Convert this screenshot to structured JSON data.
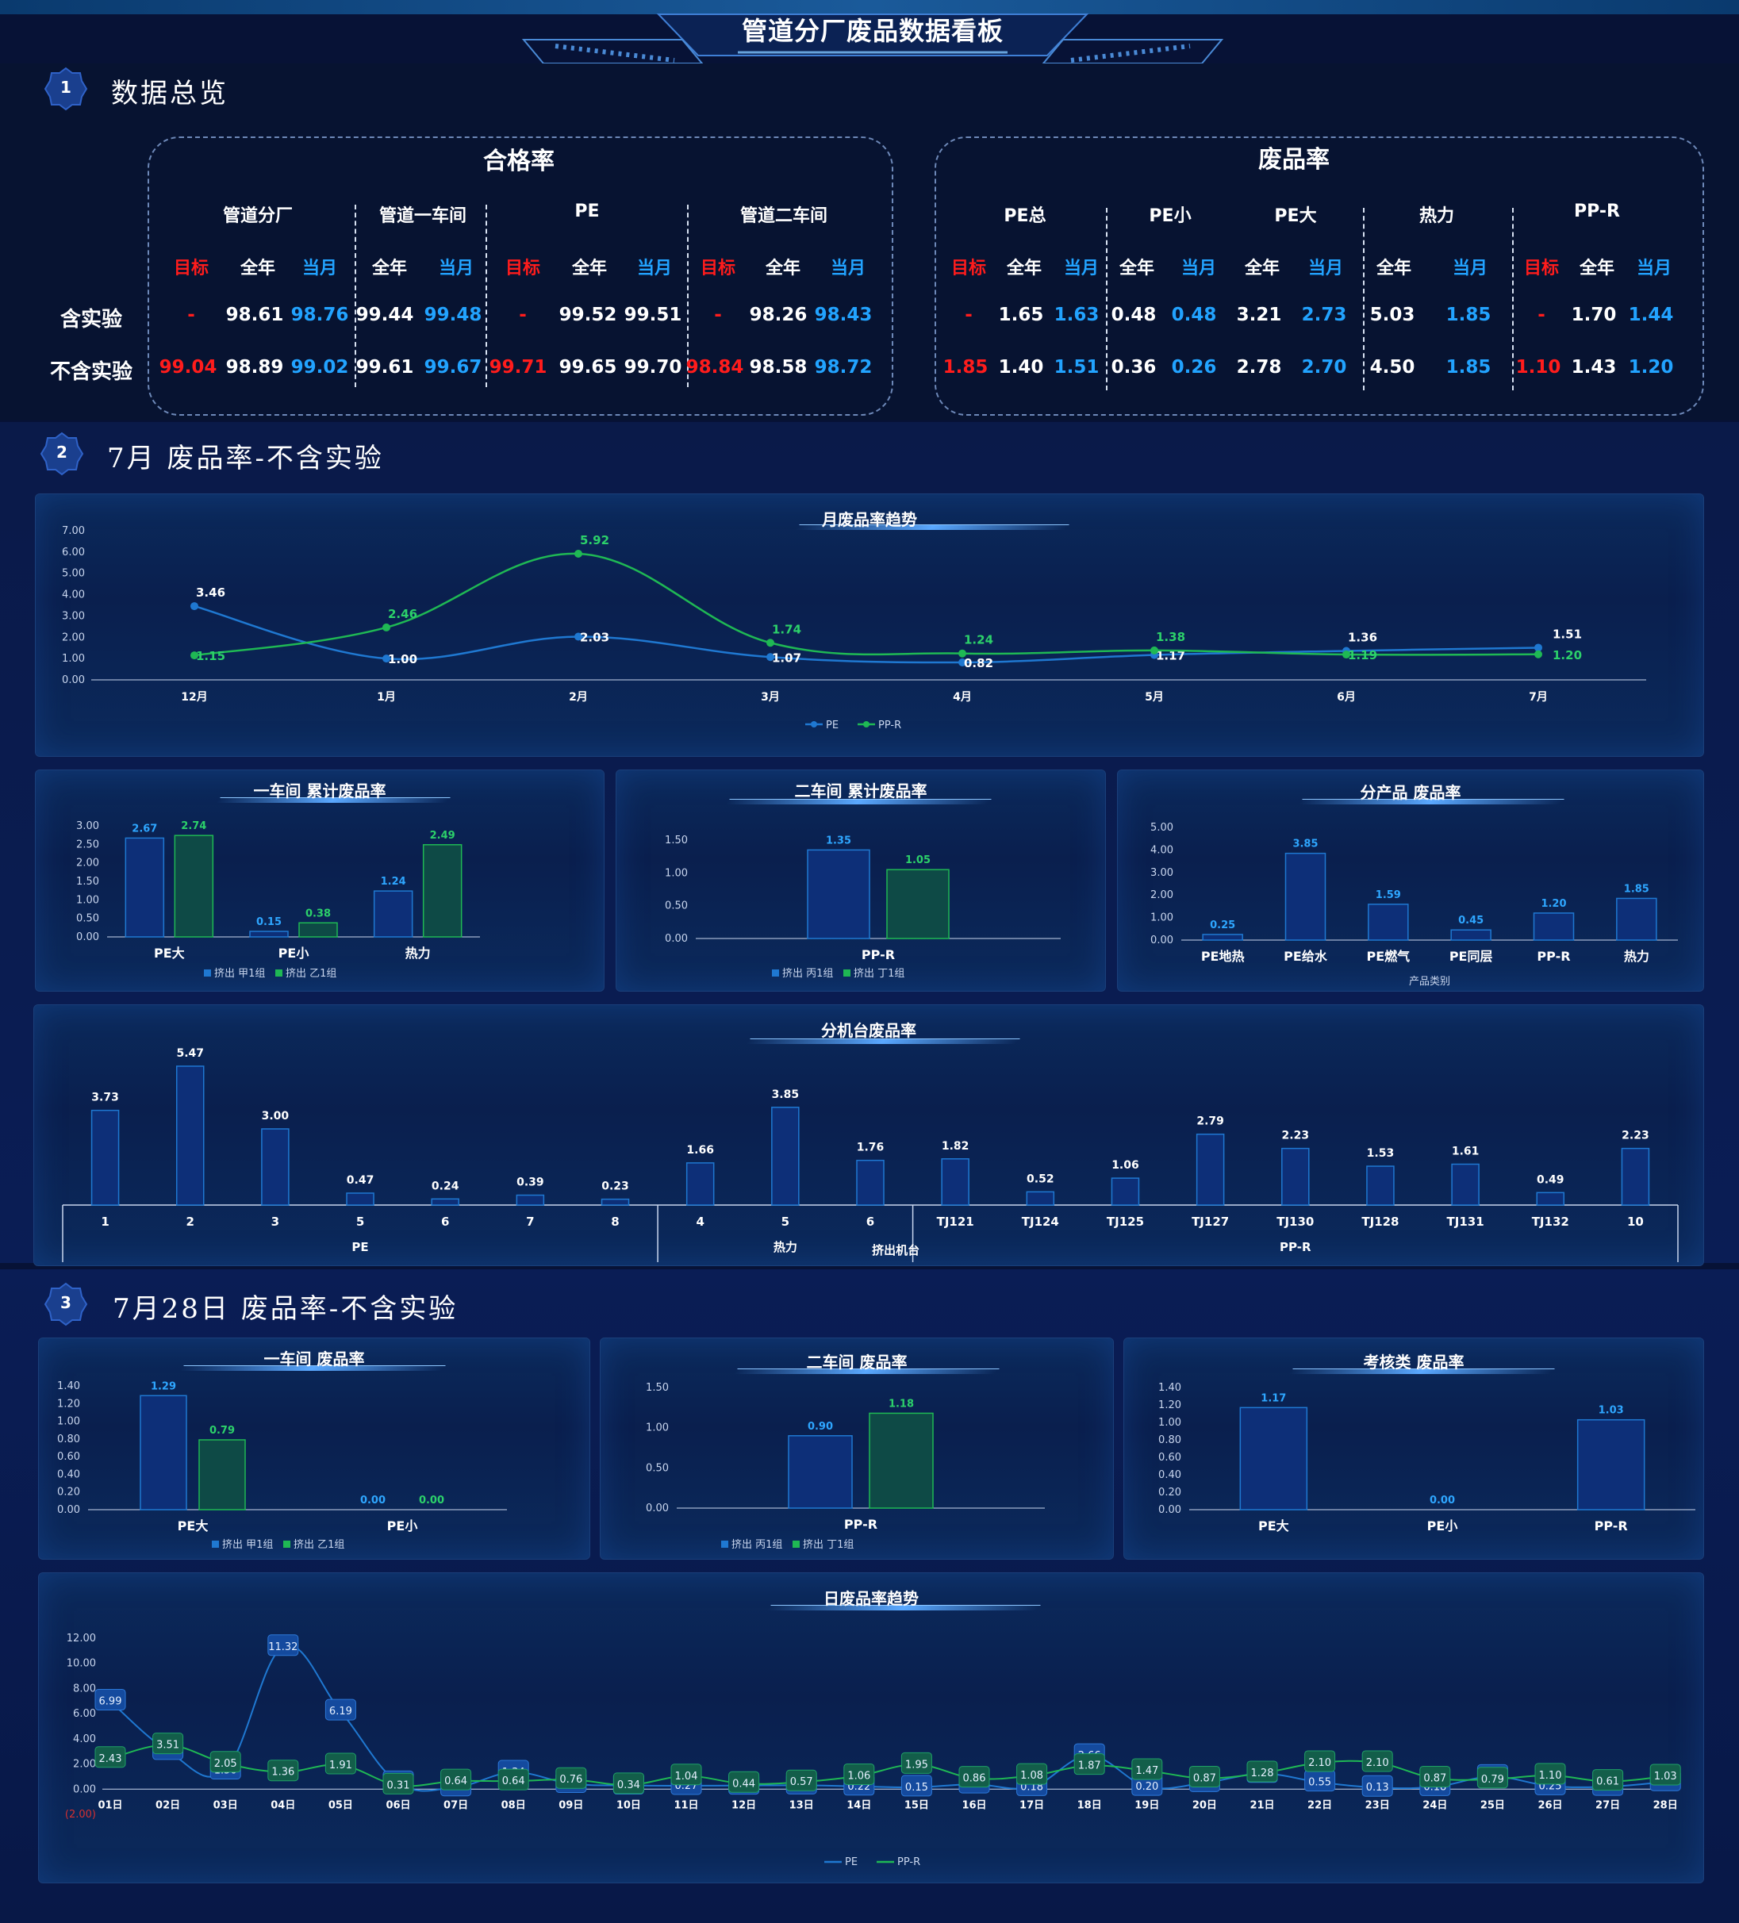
{
  "header": {
    "title": "管道分厂废品数据看板"
  },
  "sections": [
    {
      "num": "1",
      "title": "数据总览"
    },
    {
      "num": "2",
      "title": "7月 废品率-不含实验"
    },
    {
      "num": "3",
      "title": "7月28日 废品率-不含实验"
    }
  ],
  "pass_rate": {
    "title": "合格率",
    "row_labels": [
      "含实验",
      "不含实验"
    ],
    "groups": [
      {
        "name": "管道分厂",
        "cols": [
          "目标",
          "全年",
          "当月"
        ],
        "rows": [
          [
            "-",
            "98.61",
            "98.76"
          ],
          [
            "99.04",
            "98.89",
            "99.02"
          ]
        ]
      },
      {
        "name": "管道一车间",
        "cols": [
          "全年",
          "当月"
        ],
        "rows": [
          [
            "99.44",
            "99.48"
          ],
          [
            "99.61",
            "99.67"
          ]
        ]
      },
      {
        "name": "PE",
        "cols": [
          "目标",
          "全年",
          "当月"
        ],
        "rows": [
          [
            "-",
            "99.52",
            "99.51"
          ],
          [
            "99.71",
            "99.65",
            "99.70"
          ]
        ]
      },
      {
        "name": "管道二车间",
        "cols": [
          "目标",
          "全年",
          "当月"
        ],
        "rows": [
          [
            "-",
            "98.26",
            "98.43"
          ],
          [
            "98.84",
            "98.58",
            "98.72"
          ]
        ]
      }
    ]
  },
  "scrap_rate": {
    "title": "废品率",
    "groups": [
      {
        "name": "PE总",
        "cols": [
          "目标",
          "全年",
          "当月"
        ],
        "rows": [
          [
            "-",
            "1.65",
            "1.63"
          ],
          [
            "1.85",
            "1.40",
            "1.51"
          ]
        ]
      },
      {
        "name": "PE小",
        "cols": [
          "全年",
          "当月"
        ],
        "rows": [
          [
            "0.48",
            "0.48"
          ],
          [
            "0.36",
            "0.26"
          ]
        ]
      },
      {
        "name": "PE大",
        "cols": [
          "全年",
          "当月"
        ],
        "rows": [
          [
            "3.21",
            "2.73"
          ],
          [
            "2.78",
            "2.70"
          ]
        ]
      },
      {
        "name": "热力",
        "cols": [
          "全年",
          "当月"
        ],
        "rows": [
          [
            "5.03",
            "1.85"
          ],
          [
            "4.50",
            "1.85"
          ]
        ]
      },
      {
        "name": "PP-R",
        "cols": [
          "目标",
          "全年",
          "当月"
        ],
        "rows": [
          [
            "-",
            "1.70",
            "1.44"
          ],
          [
            "1.10",
            "1.43",
            "1.20"
          ]
        ]
      }
    ]
  },
  "colors": {
    "pe": "#1f78d1",
    "ppr": "#1fb854",
    "target": "#ff1c1c",
    "current": "#22a3ff"
  },
  "chart_data": [
    {
      "id": "monthly_trend",
      "type": "line",
      "title": "月废品率趋势",
      "categories": [
        "12月",
        "1月",
        "2月",
        "3月",
        "4月",
        "5月",
        "6月",
        "7月"
      ],
      "series": [
        {
          "name": "PE",
          "values": [
            3.46,
            1.0,
            2.03,
            1.07,
            0.82,
            1.17,
            1.36,
            1.51
          ]
        },
        {
          "name": "PP-R",
          "values": [
            1.15,
            2.46,
            5.92,
            1.74,
            1.24,
            1.38,
            1.19,
            1.2
          ]
        }
      ],
      "yticks": [
        "0.00",
        "1.00",
        "2.00",
        "3.00",
        "4.00",
        "5.00",
        "6.00",
        "7.00"
      ],
      "ylim": [
        0,
        7
      ]
    },
    {
      "id": "ws1_cum",
      "type": "bar",
      "title": "一车间 累计废品率",
      "categories": [
        "PE大",
        "PE小",
        "热力"
      ],
      "series": [
        {
          "name": "挤出 甲1组",
          "values": [
            2.67,
            0.15,
            1.24
          ]
        },
        {
          "name": "挤出 乙1组",
          "values": [
            2.74,
            0.38,
            2.49
          ]
        }
      ],
      "yticks": [
        "0.00",
        "0.50",
        "1.00",
        "1.50",
        "2.00",
        "2.50",
        "3.00"
      ],
      "ylim": [
        0,
        3
      ]
    },
    {
      "id": "ws2_cum",
      "type": "bar",
      "title": "二车间 累计废品率",
      "categories": [
        "PP-R"
      ],
      "series": [
        {
          "name": "挤出 丙1组",
          "values": [
            1.35
          ]
        },
        {
          "name": "挤出 丁1组",
          "values": [
            1.05
          ]
        }
      ],
      "yticks": [
        "0.00",
        "0.50",
        "1.00",
        "1.50"
      ],
      "ylim": [
        0,
        1.5
      ]
    },
    {
      "id": "by_product",
      "type": "bar",
      "title": "分产品 废品率",
      "categories": [
        "PE地热",
        "PE给水",
        "PE燃气",
        "PE同层",
        "PP-R",
        "热力"
      ],
      "series": [
        {
          "name": "",
          "values": [
            0.25,
            3.85,
            1.59,
            0.45,
            1.2,
            1.85
          ]
        }
      ],
      "xlabel": "产品类别",
      "yticks": [
        "0.00",
        "1.00",
        "2.00",
        "3.00",
        "4.00",
        "5.00"
      ],
      "ylim": [
        0,
        5
      ]
    },
    {
      "id": "by_machine",
      "type": "bar",
      "title": "分机台废品率",
      "categories": [
        "1",
        "2",
        "3",
        "5",
        "6",
        "7",
        "8",
        "4",
        "5",
        "6",
        "TJ121",
        "TJ124",
        "TJ125",
        "TJ127",
        "TJ130",
        "TJ128",
        "TJ131",
        "TJ132",
        "10"
      ],
      "series": [
        {
          "name": "",
          "values": [
            3.73,
            5.47,
            3.0,
            0.47,
            0.24,
            0.39,
            0.23,
            1.66,
            3.85,
            1.76,
            1.82,
            0.52,
            1.06,
            2.79,
            2.23,
            1.53,
            1.61,
            0.49,
            2.23
          ]
        }
      ],
      "groups": [
        {
          "label": "PE",
          "count": 7
        },
        {
          "label": "热力",
          "count": 3
        },
        {
          "label": "PP-R",
          "count": 9
        }
      ],
      "xlabel": "挤出机台",
      "ylim": [
        0,
        5.5
      ]
    },
    {
      "id": "day_ws1",
      "type": "bar",
      "title": "一车间 废品率",
      "categories": [
        "PE大",
        "PE小"
      ],
      "series": [
        {
          "name": "挤出 甲1组",
          "values": [
            1.29,
            0.0
          ]
        },
        {
          "name": "挤出 乙1组",
          "values": [
            0.79,
            0.0
          ]
        }
      ],
      "yticks": [
        "0.00",
        "0.20",
        "0.40",
        "0.60",
        "0.80",
        "1.00",
        "1.20",
        "1.40"
      ],
      "ylim": [
        0,
        1.4
      ]
    },
    {
      "id": "day_ws2",
      "type": "bar",
      "title": "二车间 废品率",
      "categories": [
        "PP-R"
      ],
      "series": [
        {
          "name": "挤出 丙1组",
          "values": [
            0.9
          ]
        },
        {
          "name": "挤出 丁1组",
          "values": [
            1.18
          ]
        }
      ],
      "yticks": [
        "0.00",
        "0.50",
        "1.00",
        "1.50"
      ],
      "ylim": [
        0,
        1.5
      ]
    },
    {
      "id": "day_assess",
      "type": "bar",
      "title": "考核类 废品率",
      "categories": [
        "PE大",
        "PE小",
        "PP-R"
      ],
      "series": [
        {
          "name": "",
          "values": [
            1.17,
            0.0,
            1.03
          ]
        }
      ],
      "yticks": [
        "0.00",
        "0.20",
        "0.40",
        "0.60",
        "0.80",
        "1.00",
        "1.20",
        "1.40"
      ],
      "ylim": [
        0,
        1.4
      ]
    },
    {
      "id": "daily_trend",
      "type": "line",
      "title": "日废品率趋势",
      "categories": [
        "01日",
        "02日",
        "03日",
        "04日",
        "05日",
        "06日",
        "07日",
        "08日",
        "09日",
        "10日",
        "11日",
        "12日",
        "13日",
        "14日",
        "15日",
        "16日",
        "17日",
        "18日",
        "19日",
        "20日",
        "21日",
        "22日",
        "23日",
        "24日",
        "25日",
        "26日",
        "27日",
        "28日"
      ],
      "series": [
        {
          "name": "PE",
          "values": [
            6.99,
            3.05,
            1.5,
            11.32,
            6.19,
            0.5,
            0.16,
            1.34,
            0.43,
            0.3,
            0.27,
            0.29,
            0.31,
            0.22,
            0.15,
            0.39,
            0.18,
            2.66,
            0.2,
            0.5,
            1.23,
            0.55,
            0.13,
            0.18,
            1.0,
            0.25,
            0.2,
            0.57
          ]
        },
        {
          "name": "PP-R",
          "values": [
            2.43,
            3.51,
            2.05,
            1.36,
            1.91,
            0.31,
            0.64,
            0.64,
            0.76,
            0.34,
            1.04,
            0.44,
            0.57,
            1.06,
            1.95,
            0.86,
            1.08,
            1.87,
            1.47,
            0.87,
            1.28,
            2.1,
            2.1,
            0.87,
            0.79,
            1.1,
            0.61,
            1.03
          ]
        }
      ],
      "yticks": [
        "(2.00)",
        "0.00",
        "2.00",
        "4.00",
        "6.00",
        "8.00",
        "10.00",
        "12.00"
      ],
      "ylim": [
        -2,
        12
      ]
    }
  ]
}
